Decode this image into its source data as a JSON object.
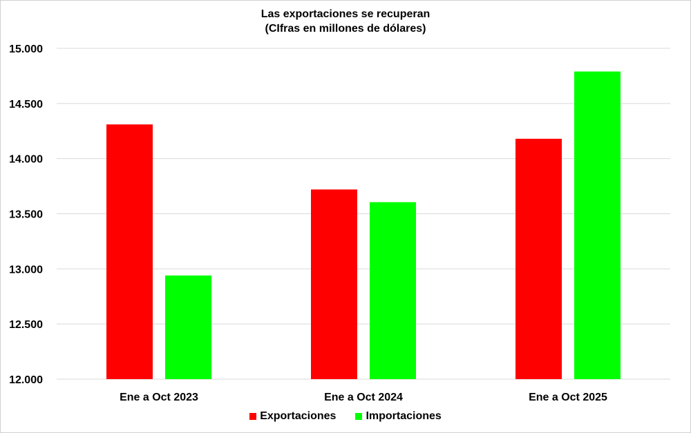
{
  "chart_data": {
    "type": "bar",
    "title": "Las exportaciones se recuperan",
    "subtitle": "(CIfras en millones de dólares)",
    "categories": [
      "Ene a Oct 2023",
      "Ene a Oct 2024",
      "Ene a Oct 2025"
    ],
    "series": [
      {
        "name": "Exportaciones",
        "color": "#ff0000",
        "values": [
          14310,
          13720,
          14180
        ]
      },
      {
        "name": "Importaciones",
        "color": "#00ff00",
        "values": [
          12940,
          13605,
          14790
        ]
      }
    ],
    "ylim": [
      12000,
      15000
    ],
    "yticks": [
      12000,
      12500,
      13000,
      13500,
      14000,
      14500,
      15000
    ],
    "ytick_labels": [
      "12.000",
      "12.500",
      "13.000",
      "13.500",
      "14.000",
      "14.500",
      "15.000"
    ],
    "grid": true,
    "legend": "bottom",
    "xlabel": "",
    "ylabel": ""
  }
}
